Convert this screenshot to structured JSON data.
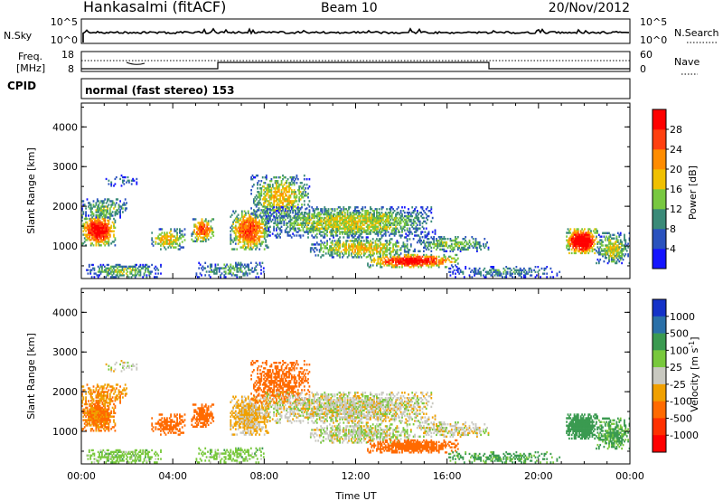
{
  "header": {
    "station": "Hankasalmi (fitACF)",
    "beam": "Beam 10",
    "date": "20/Nov/2012"
  },
  "noise_panel": {
    "left_label": "N.Sky",
    "right_label": "N.Search",
    "left_ticks": [
      "10^5",
      "10^0"
    ],
    "right_ticks": [
      "10^5",
      "10^0"
    ]
  },
  "freq_panel": {
    "left_label_1": "Freq.",
    "left_label_2": "[MHz]",
    "left_ticks": [
      "18",
      "8"
    ],
    "right_label": "Nave",
    "right_ticks": [
      "60",
      "0"
    ]
  },
  "cpid_panel": {
    "label": "CPID",
    "program": "normal (fast stereo) 153"
  },
  "chart_data": [
    {
      "type": "heatmap",
      "title": "",
      "xlabel": "Time UT",
      "ylabel": "Slant Range [km]",
      "x_ticks": [
        "00:00",
        "04:00",
        "08:00",
        "12:00",
        "16:00",
        "20:00",
        "00:00"
      ],
      "y_ticks": [
        "1000",
        "2000",
        "3000",
        "4000"
      ],
      "ylim": [
        180,
        4600
      ],
      "colorbar": {
        "label": "Power [dB]",
        "ticks": [
          "4",
          "8",
          "12",
          "16",
          "20",
          "24",
          "28"
        ],
        "range": [
          0,
          32
        ],
        "colors": [
          "#1414ff",
          "#2a52be",
          "#3a8a78",
          "#78c840",
          "#f0c000",
          "#ff8c00",
          "#ff4010",
          "#ff0000"
        ]
      }
    },
    {
      "type": "heatmap",
      "title": "",
      "xlabel": "Time UT",
      "ylabel": "Slant Range [km]",
      "x_ticks": [
        "00:00",
        "04:00",
        "08:00",
        "12:00",
        "16:00",
        "20:00",
        "00:00"
      ],
      "y_ticks": [
        "1000",
        "2000",
        "3000",
        "4000"
      ],
      "ylim": [
        180,
        4600
      ],
      "colorbar": {
        "label": "Velocity [m s^-1]",
        "ticks": [
          "1000",
          "500",
          "100",
          "25",
          "-25",
          "-100",
          "-500",
          "-1000"
        ],
        "colors": [
          "#1432c8",
          "#2a70a8",
          "#3a9a50",
          "#78c83c",
          "#c8c8c0",
          "#f0a000",
          "#ff6a00",
          "#ff3000",
          "#ff0000"
        ]
      }
    }
  ],
  "echo_regions": [
    {
      "t0": 0.0,
      "t1": 1.5,
      "r0": 1000,
      "r1": 1800,
      "p": 26,
      "v": -110,
      "d": 0.85
    },
    {
      "t0": 0.0,
      "t1": 2.0,
      "r0": 1700,
      "r1": 2200,
      "p": 12,
      "v": -80,
      "d": 0.5
    },
    {
      "t0": 0.2,
      "t1": 3.5,
      "r0": 200,
      "r1": 550,
      "p": 12,
      "v": 60,
      "d": 0.55
    },
    {
      "t0": 1.0,
      "t1": 2.5,
      "r0": 2500,
      "r1": 2800,
      "p": 6,
      "v": 0,
      "d": 0.3
    },
    {
      "t0": 3.0,
      "t1": 4.6,
      "r0": 900,
      "r1": 1450,
      "p": 16,
      "v": -150,
      "d": 0.55
    },
    {
      "t0": 4.8,
      "t1": 5.8,
      "r0": 1100,
      "r1": 1700,
      "p": 22,
      "v": -180,
      "d": 0.75
    },
    {
      "t0": 5.0,
      "t1": 8.0,
      "r0": 200,
      "r1": 600,
      "p": 10,
      "v": 60,
      "d": 0.4
    },
    {
      "t0": 6.5,
      "t1": 8.2,
      "r0": 900,
      "r1": 1900,
      "p": 22,
      "v": -40,
      "d": 0.75
    },
    {
      "t0": 7.4,
      "t1": 10.0,
      "r0": 1700,
      "r1": 2800,
      "p": 16,
      "v": -300,
      "d": 0.55
    },
    {
      "t0": 8.0,
      "t1": 15.5,
      "r0": 1200,
      "r1": 2000,
      "p": 14,
      "v": 0,
      "d": 0.65
    },
    {
      "t0": 10.0,
      "t1": 14.5,
      "r0": 700,
      "r1": 1200,
      "p": 16,
      "v": 10,
      "d": 0.6
    },
    {
      "t0": 12.5,
      "t1": 16.5,
      "r0": 450,
      "r1": 800,
      "p": 26,
      "v": -150,
      "d": 0.75
    },
    {
      "t0": 14.5,
      "t1": 18.0,
      "r0": 850,
      "r1": 1250,
      "p": 12,
      "v": 0,
      "d": 0.45
    },
    {
      "t0": 16.0,
      "t1": 21.0,
      "r0": 200,
      "r1": 500,
      "p": 8,
      "v": 120,
      "d": 0.4
    },
    {
      "t0": 21.2,
      "t1": 22.6,
      "r0": 800,
      "r1": 1450,
      "p": 30,
      "v": 300,
      "d": 0.9
    },
    {
      "t0": 22.5,
      "t1": 24.0,
      "r0": 550,
      "r1": 1350,
      "p": 14,
      "v": 120,
      "d": 0.6
    }
  ]
}
